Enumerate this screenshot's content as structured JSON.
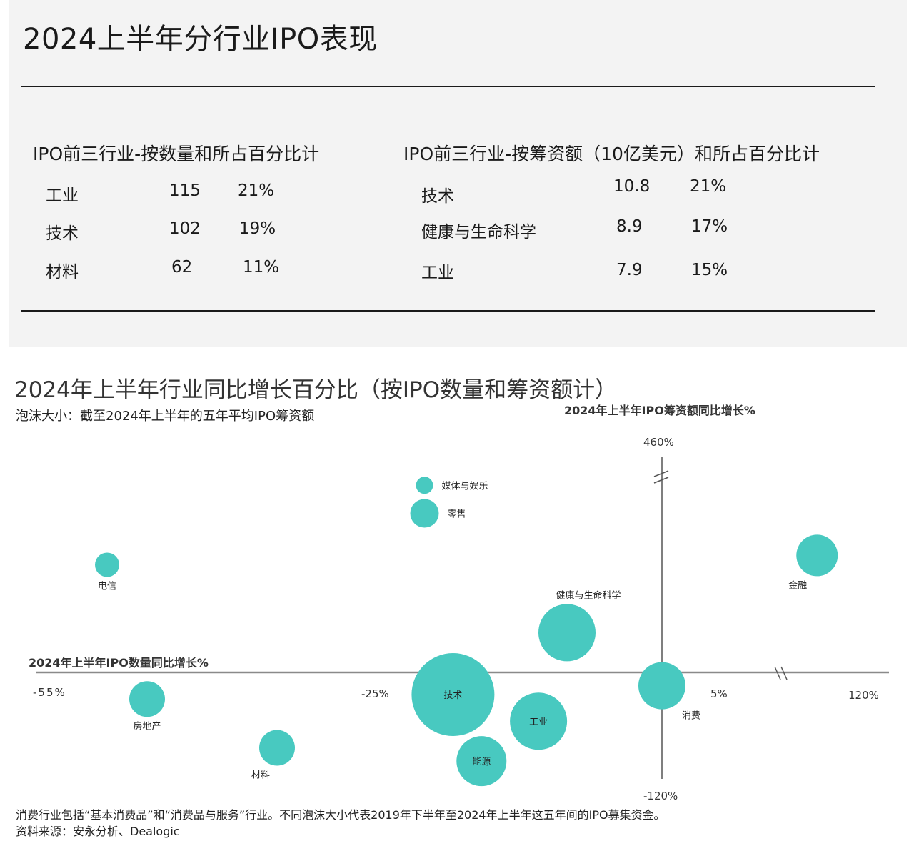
{
  "header": {
    "title": "2024上半年分行业IPO表现"
  },
  "table_count": {
    "heading": "IPO前三行业-按数量和所占百分比计",
    "rows": [
      {
        "sector": "工业",
        "value": "115",
        "share": "21%"
      },
      {
        "sector": "技术",
        "value": "102",
        "share": "19%"
      },
      {
        "sector": "材料",
        "value": "62",
        "share": "11%"
      }
    ]
  },
  "table_proceeds": {
    "heading": "IPO前三行业-按筹资额（10亿美元）和所占百分比计",
    "rows": [
      {
        "sector": "技术",
        "value": "10.8",
        "share": "21%"
      },
      {
        "sector": "健康与生命科学",
        "value": "8.9",
        "share": "17%"
      },
      {
        "sector": "工业",
        "value": "7.9",
        "share": "15%"
      }
    ]
  },
  "chart_data": {
    "type": "scatter",
    "title": "2024年上半年行业同比增长百分比（按IPO数量和筹资额计）",
    "subtitle": "泡沫大小：截至2024年上半年的五年平均IPO筹资额",
    "xlabel": "2024年上半年IPO数量同比增长%",
    "ylabel": "2024年上半年IPO筹资额同比增长%",
    "x_ticks": [
      "-55%",
      "-25%",
      "5%",
      "120%"
    ],
    "y_ticks": [
      "460%",
      "-120%"
    ],
    "axis_breaks": [
      "x",
      "y"
    ],
    "points": [
      {
        "name": "媒体与娱乐",
        "x": -20,
        "y": 400,
        "size": 12
      },
      {
        "name": "零售",
        "x": -20,
        "y": 340,
        "size": 20
      },
      {
        "name": "电信",
        "x": -52,
        "y": 230,
        "size": 17
      },
      {
        "name": "金融",
        "x": 100,
        "y": 250,
        "size": 29
      },
      {
        "name": "健康与生命科学",
        "x": -5,
        "y": 85,
        "size": 40
      },
      {
        "name": "技术",
        "x": -17,
        "y": -25,
        "size": 58
      },
      {
        "name": "工业",
        "x": -8,
        "y": -55,
        "size": 40
      },
      {
        "name": "能源",
        "x": -14,
        "y": -100,
        "size": 35
      },
      {
        "name": "消费",
        "x": 5,
        "y": -15,
        "size": 33
      },
      {
        "name": "房地产",
        "x": -48,
        "y": -30,
        "size": 25
      },
      {
        "name": "材料",
        "x": -35,
        "y": -85,
        "size": 25
      }
    ]
  },
  "notes": {
    "footnote": "消费行业包括“基本消费品”和“消费品与服务”行业。不同泡沫大小代表2019年下半年至2024年上半年这五年间的IPO募集资金。",
    "source": "资料来源：安永分析、Dealogic"
  },
  "colors": {
    "bubble": "#48c9c0",
    "axis": "#8a8a8a",
    "text": "#1a1a1a"
  }
}
